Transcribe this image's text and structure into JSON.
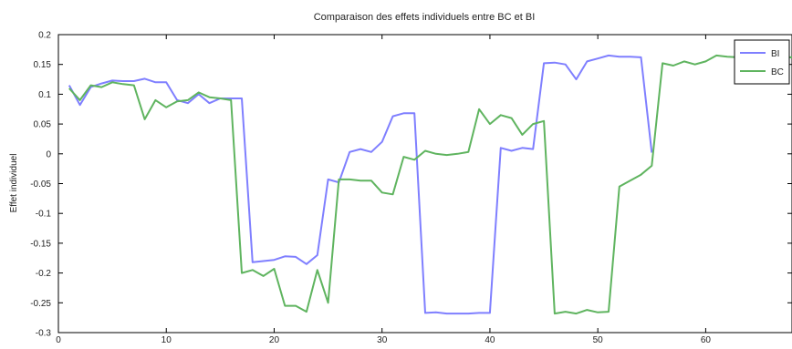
{
  "chart_data": {
    "type": "line",
    "title": "Comparaison des effets individuels entre BC et BI",
    "xlabel": "",
    "ylabel": "Effet individuel",
    "xlim": [
      0,
      68
    ],
    "ylim": [
      -0.3,
      0.2
    ],
    "xticks": [
      0,
      10,
      20,
      30,
      40,
      50,
      60
    ],
    "yticks": [
      0.2,
      0.15,
      0.1,
      0.05,
      0,
      -0.05,
      -0.1,
      -0.15,
      -0.2,
      -0.25,
      -0.3
    ],
    "ytick_labels": [
      "0.2",
      "0.15",
      "0.1",
      "0.05",
      "0",
      "-0.05",
      "-0.1",
      "-0.15",
      "-0.2",
      "-0.25",
      "-0.3"
    ],
    "grid": false,
    "legend_position": "top-right",
    "series": [
      {
        "name": "BI",
        "color": "#7f7fff",
        "x": [
          1,
          2,
          3,
          4,
          5,
          6,
          7,
          8,
          9,
          10,
          11,
          12,
          13,
          14,
          15,
          16,
          17,
          18,
          19,
          20,
          21,
          22,
          23,
          24,
          25,
          26,
          27,
          28,
          29,
          30,
          31,
          32,
          33,
          34,
          35,
          36,
          37,
          38,
          39,
          40,
          41,
          42,
          43,
          44,
          45,
          46,
          47,
          48,
          49,
          50,
          51,
          52,
          53,
          54,
          55
        ],
        "values": [
          0.115,
          0.082,
          0.112,
          0.118,
          0.123,
          0.122,
          0.122,
          0.126,
          0.12,
          0.12,
          0.09,
          0.085,
          0.1,
          0.085,
          0.093,
          0.093,
          0.093,
          -0.182,
          -0.18,
          -0.178,
          -0.172,
          -0.173,
          -0.185,
          -0.17,
          -0.043,
          -0.048,
          0.003,
          0.008,
          0.003,
          0.02,
          0.063,
          0.068,
          0.068,
          -0.267,
          -0.266,
          -0.268,
          -0.268,
          -0.268,
          -0.267,
          -0.267,
          0.01,
          0.005,
          0.01,
          0.008,
          0.152,
          0.153,
          0.15,
          0.125,
          0.155,
          0.16,
          0.165,
          0.163,
          0.163,
          0.162,
          0.002
        ]
      },
      {
        "name": "BC",
        "color": "#5fb45f",
        "x": [
          1,
          2,
          3,
          4,
          5,
          6,
          7,
          8,
          9,
          10,
          11,
          12,
          13,
          14,
          15,
          16,
          17,
          18,
          19,
          20,
          21,
          22,
          23,
          24,
          25,
          26,
          27,
          28,
          29,
          30,
          31,
          32,
          33,
          34,
          35,
          36,
          37,
          38,
          39,
          40,
          41,
          42,
          43,
          44,
          45,
          46,
          47,
          48,
          49,
          50,
          51,
          52,
          53,
          54,
          55,
          56,
          57,
          58,
          59,
          60,
          61,
          62,
          63,
          64,
          65,
          66,
          67,
          68
        ],
        "values": [
          0.11,
          0.09,
          0.115,
          0.112,
          0.12,
          0.117,
          0.115,
          0.058,
          0.09,
          0.078,
          0.088,
          0.09,
          0.103,
          0.095,
          0.093,
          0.09,
          -0.2,
          -0.195,
          -0.205,
          -0.193,
          -0.255,
          -0.255,
          -0.265,
          -0.195,
          -0.25,
          -0.043,
          -0.043,
          -0.045,
          -0.045,
          -0.065,
          -0.068,
          -0.005,
          -0.01,
          0.005,
          0.0,
          -0.002,
          0.0,
          0.003,
          0.075,
          0.05,
          0.065,
          0.06,
          0.032,
          0.05,
          0.055,
          -0.268,
          -0.265,
          -0.268,
          -0.262,
          -0.266,
          -0.265,
          -0.055,
          -0.045,
          -0.035,
          -0.02,
          0.152,
          0.148,
          0.155,
          0.15,
          0.155,
          0.165,
          0.163,
          0.162,
          0.162,
          0.162,
          0.162,
          0.162,
          0.162
        ]
      }
    ]
  }
}
